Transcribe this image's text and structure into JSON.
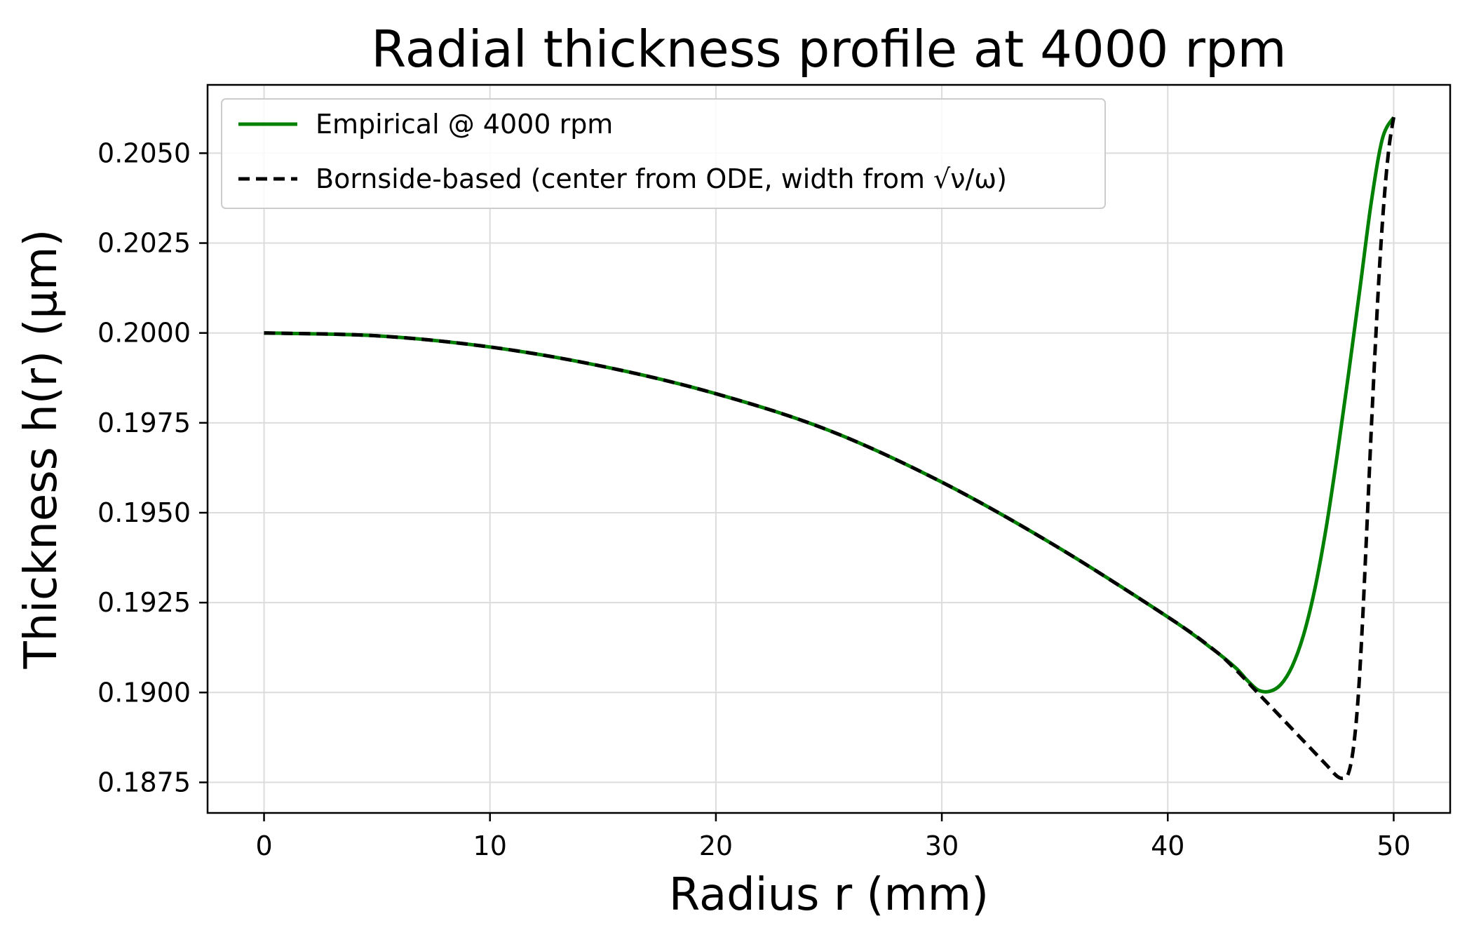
{
  "chart_data": {
    "type": "line",
    "title": "Radial thickness profile at 4000 rpm",
    "xlabel": "Radius r (mm)",
    "ylabel": "Thickness h(r) (µm)",
    "xlim": [
      -2.5,
      52.5
    ],
    "ylim": [
      0.18665,
      0.2069
    ],
    "xticks": [
      0,
      10,
      20,
      30,
      40,
      50
    ],
    "xtick_labels": [
      "0",
      "10",
      "20",
      "30",
      "40",
      "50"
    ],
    "yticks": [
      0.1875,
      0.19,
      0.1925,
      0.195,
      0.1975,
      0.2,
      0.2025,
      0.205
    ],
    "ytick_labels": [
      "0.1875",
      "0.1900",
      "0.1925",
      "0.1950",
      "0.1975",
      "0.2000",
      "0.2025",
      "0.2050"
    ],
    "grid": true,
    "legend_position": "top-left",
    "series": [
      {
        "name": "Empirical @ 4000 rpm",
        "color": "#008000",
        "style": "solid",
        "x": [
          0,
          5,
          10,
          15,
          20,
          25,
          30,
          35,
          40,
          42,
          43,
          43.5,
          44,
          44.5,
          45,
          45.5,
          46,
          46.5,
          47,
          47.5,
          48,
          48.5,
          49,
          49.5,
          50
        ],
        "y": [
          0.2,
          0.19992,
          0.19961,
          0.19907,
          0.19831,
          0.19729,
          0.19585,
          0.19409,
          0.1921,
          0.1912,
          0.19069,
          0.19035,
          0.19007,
          0.19003,
          0.19022,
          0.19072,
          0.19158,
          0.19285,
          0.19454,
          0.1966,
          0.19885,
          0.2012,
          0.2036,
          0.2054,
          0.206
        ]
      },
      {
        "name": "Bornside-based (center from ODE, width from √ν/ω)",
        "color": "#000000",
        "style": "dashed",
        "x": [
          0,
          5,
          10,
          15,
          20,
          25,
          30,
          35,
          40,
          42,
          43,
          44,
          45,
          46,
          47,
          47.5,
          47.8,
          48,
          48.2,
          48.4,
          48.6,
          48.8,
          49,
          49.2,
          49.4,
          49.6,
          49.8,
          50
        ],
        "y": [
          0.2,
          0.19992,
          0.19961,
          0.19907,
          0.19831,
          0.19729,
          0.19585,
          0.19409,
          0.1921,
          0.19121,
          0.19064,
          0.18998,
          0.18932,
          0.18866,
          0.188,
          0.18767,
          0.18762,
          0.18776,
          0.18838,
          0.18963,
          0.1917,
          0.1944,
          0.1972,
          0.1998,
          0.2021,
          0.2039,
          0.2052,
          0.206
        ]
      }
    ]
  }
}
